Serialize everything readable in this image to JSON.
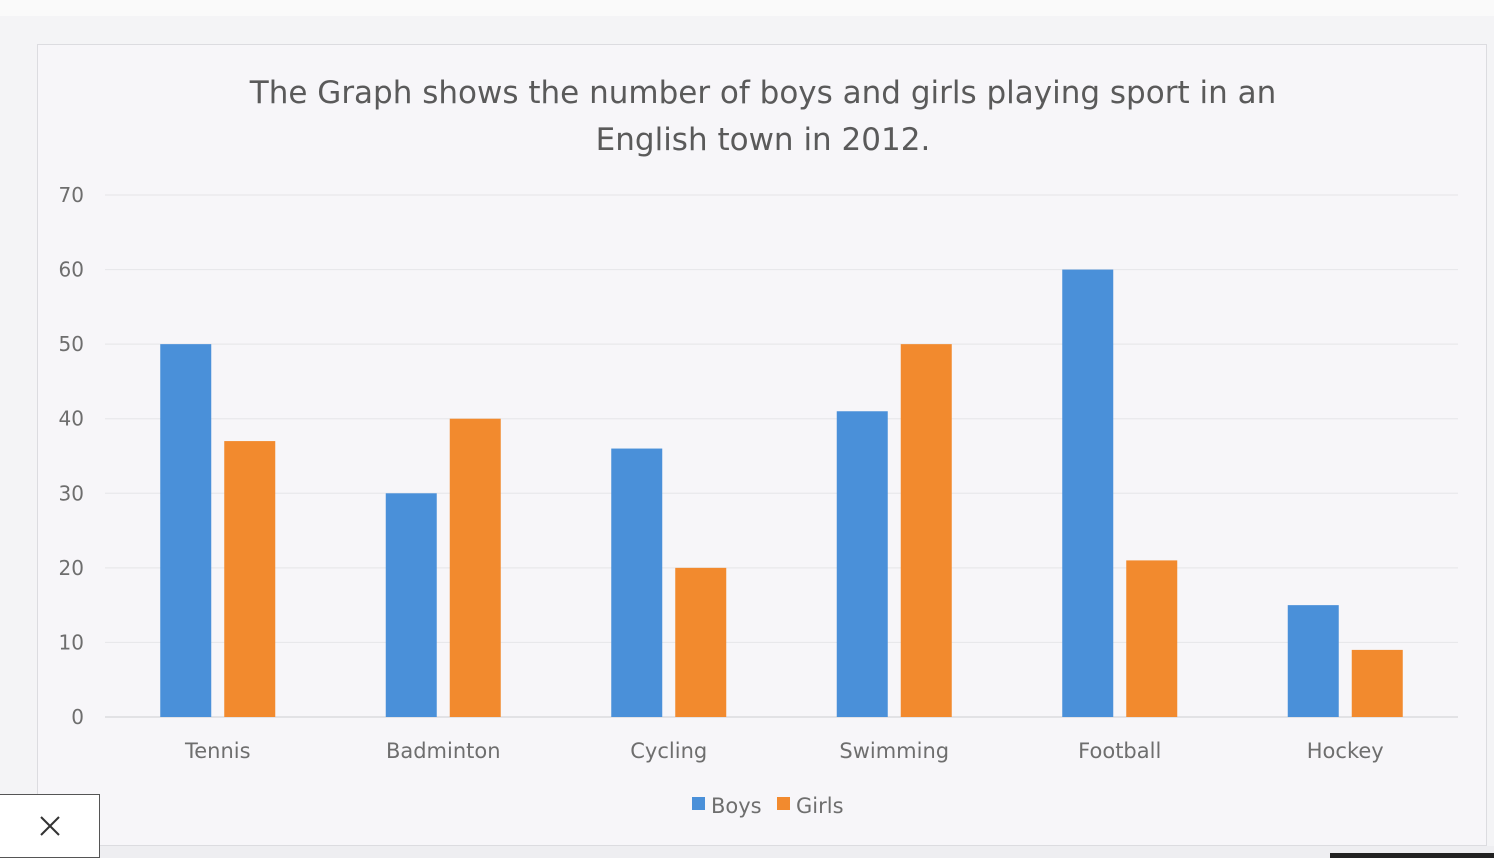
{
  "chart_data": {
    "type": "bar",
    "title_lines": [
      "The Graph shows the number of boys and girls playing sport in an",
      "English town in 2012."
    ],
    "categories": [
      "Tennis",
      "Badminton",
      "Cycling",
      "Swimming",
      "Football",
      "Hockey"
    ],
    "series": [
      {
        "name": "Boys",
        "color": "#4a90d9",
        "values": [
          50,
          30,
          36,
          41,
          60,
          15
        ]
      },
      {
        "name": "Girls",
        "color": "#f28a2e",
        "values": [
          37,
          40,
          20,
          50,
          21,
          9
        ]
      }
    ],
    "ylim": [
      0,
      70
    ],
    "yticks": [
      0,
      10,
      20,
      30,
      40,
      50,
      60,
      70
    ],
    "grid": true,
    "legend_position": "bottom-center"
  },
  "overlay": {
    "close_icon": "close-icon"
  }
}
